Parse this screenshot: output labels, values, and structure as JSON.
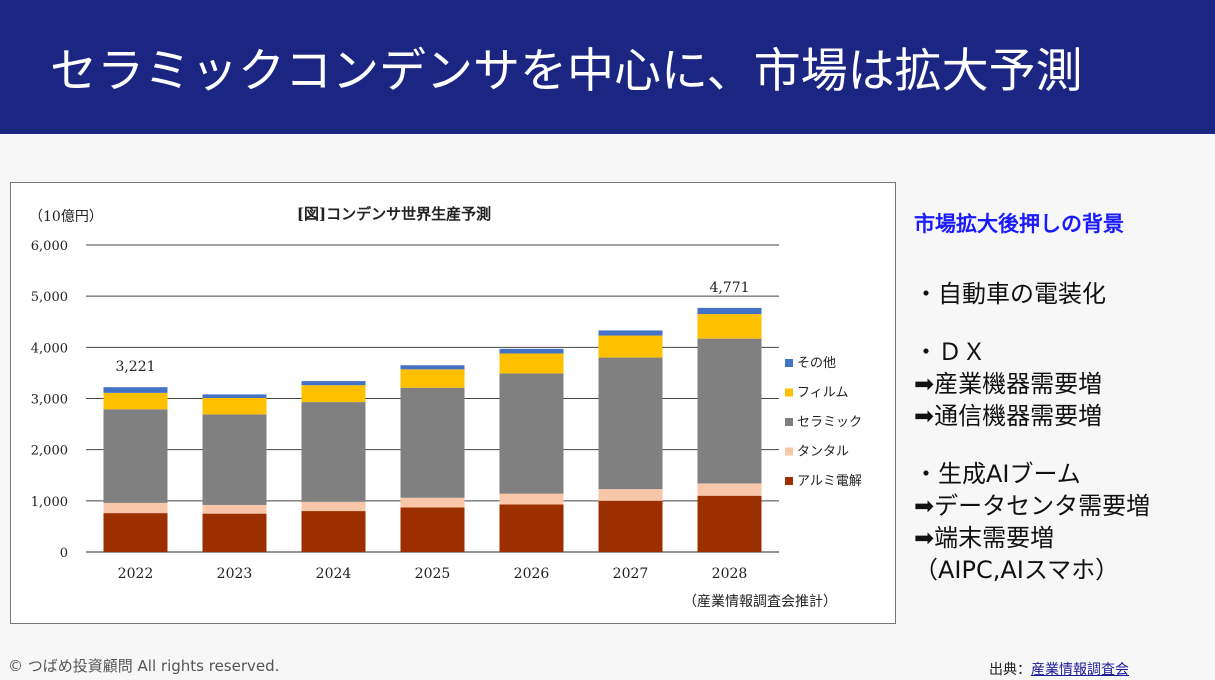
{
  "header": {
    "title": "セラミックコンデンサを中心に、市場は拡大予測"
  },
  "chart_data": {
    "type": "bar",
    "stacked": true,
    "title": "[図]コンデンサ世界生産予測",
    "unit_label": "（10億円）",
    "note": "（産業情報調査会推計）",
    "categories": [
      "2022",
      "2023",
      "2024",
      "2025",
      "2026",
      "2027",
      "2028"
    ],
    "ylim": [
      0,
      6000
    ],
    "yticks": [
      0,
      1000,
      2000,
      3000,
      4000,
      5000,
      6000
    ],
    "ytick_labels": [
      "0",
      "1,000",
      "2,000",
      "3,000",
      "4,000",
      "5,000",
      "6,000"
    ],
    "totals": [
      {
        "index": 0,
        "value": 3221,
        "label": "3,221"
      },
      {
        "index": 6,
        "value": 4771,
        "label": "4,771"
      }
    ],
    "series": [
      {
        "name": "アルミ電解",
        "color": "#9c2f00",
        "values": [
          760,
          750,
          800,
          870,
          930,
          1000,
          1100
        ]
      },
      {
        "name": "タンタル",
        "color": "#f8c6a8",
        "values": [
          200,
          170,
          180,
          190,
          210,
          230,
          240
        ]
      },
      {
        "name": "セラミック",
        "color": "#808080",
        "values": [
          1830,
          1770,
          1950,
          2150,
          2350,
          2570,
          2830
        ]
      },
      {
        "name": "フィルム",
        "color": "#ffc000",
        "values": [
          320,
          320,
          330,
          360,
          390,
          430,
          480
        ]
      },
      {
        "name": "その他",
        "color": "#4472c4",
        "values": [
          111,
          70,
          80,
          80,
          90,
          100,
          121
        ]
      }
    ],
    "legend": [
      "その他",
      "フィルム",
      "セラミック",
      "タンタル",
      "アルミ電解"
    ]
  },
  "side": {
    "title": "市場拡大後押しの背景",
    "blocks": [
      [
        "・自動車の電装化"
      ],
      [
        "・ＤＸ",
        "➡産業機器需要増",
        "➡通信機器需要増"
      ],
      [
        "・生成AIブーム",
        "➡データセンタ需要増",
        "➡端末需要増",
        "（AIPC,AIスマホ）"
      ]
    ]
  },
  "footer": {
    "copyright": "© つばめ投資顧問 All rights reserved.",
    "source_prefix": "出典：",
    "source_link": "産業情報調査会"
  }
}
